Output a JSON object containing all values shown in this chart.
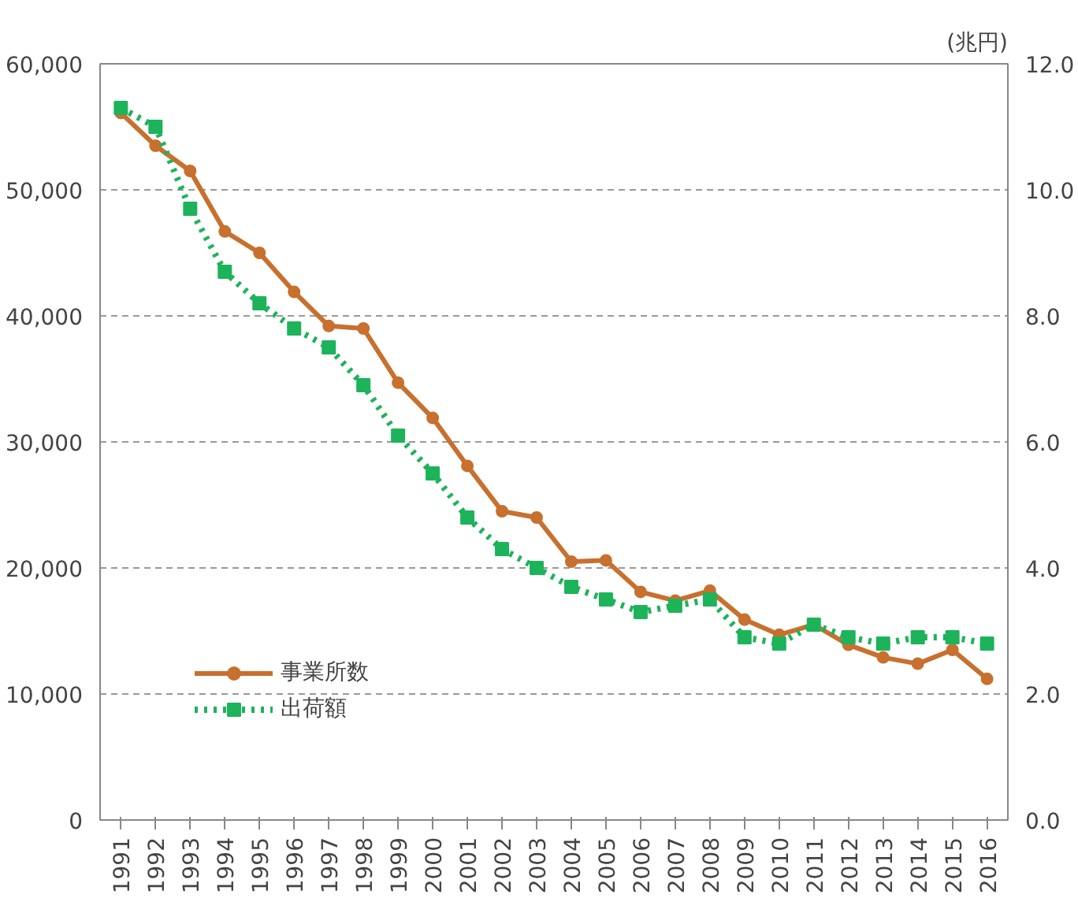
{
  "chart_data": {
    "type": "line",
    "categories": [
      "1991",
      "1992",
      "1993",
      "1994",
      "1995",
      "1996",
      "1997",
      "1998",
      "1999",
      "2000",
      "2001",
      "2002",
      "2003",
      "2004",
      "2005",
      "2006",
      "2007",
      "2008",
      "2009",
      "2010",
      "2011",
      "2012",
      "2013",
      "2014",
      "2015",
      "2016"
    ],
    "y2label": "(兆円)",
    "ylim": [
      0,
      60000
    ],
    "yticks": [
      {
        "value": 0,
        "label": "0"
      },
      {
        "value": 10000,
        "label": "10,000"
      },
      {
        "value": 20000,
        "label": "20,000"
      },
      {
        "value": 30000,
        "label": "30,000"
      },
      {
        "value": 40000,
        "label": "40,000"
      },
      {
        "value": 50000,
        "label": "50,000"
      },
      {
        "value": 60000,
        "label": "60,000"
      }
    ],
    "y2lim": [
      0,
      12
    ],
    "y2ticks": [
      {
        "value": 0,
        "label": "0.0"
      },
      {
        "value": 2,
        "label": "2.0"
      },
      {
        "value": 4,
        "label": "4.0"
      },
      {
        "value": 6,
        "label": "6.0"
      },
      {
        "value": 8,
        "label": "8.0"
      },
      {
        "value": 10,
        "label": "10.0"
      },
      {
        "value": 12,
        "label": "12.0"
      }
    ],
    "grid": "y",
    "legend": "bottom left",
    "series": [
      {
        "name": "事業所数",
        "color": "#c8702e",
        "marker": "circle",
        "line_style": "solid",
        "values": [
          56100,
          53500,
          51500,
          46700,
          45000,
          41900,
          39200,
          39000,
          34700,
          31900,
          28100,
          24500,
          24000,
          20500,
          20600,
          18100,
          17400,
          18200,
          15900,
          14700,
          15500,
          13900,
          12900,
          12400,
          13500,
          11200
        ]
      },
      {
        "name": "出荷額",
        "color": "#1db35a",
        "marker": "square",
        "line_style": "dotted",
        "axis": "y2",
        "values": [
          11.3,
          11.0,
          9.7,
          8.7,
          8.2,
          7.8,
          7.5,
          6.9,
          6.1,
          5.5,
          4.8,
          4.3,
          4.0,
          3.7,
          3.5,
          3.3,
          3.4,
          3.5,
          2.9,
          2.8,
          3.1,
          2.9,
          2.8,
          2.9,
          2.9,
          2.8
        ]
      }
    ]
  }
}
